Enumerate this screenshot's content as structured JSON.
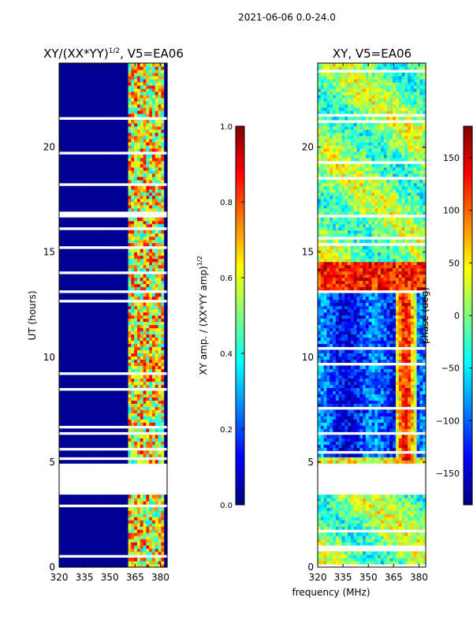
{
  "suptitle": "2021-06-06 0.0-24.0",
  "common_xlabel": "frequency (MHz)",
  "colors": {
    "background": "#ffffff",
    "no_data": "#ffffff",
    "colormap": [
      "#00007f",
      "#0000ff",
      "#007fff",
      "#00ffff",
      "#7fff7f",
      "#ffff00",
      "#ff7f00",
      "#ff0000",
      "#7f0000"
    ]
  },
  "chart_data": [
    {
      "type": "heatmap",
      "title": "XY/(XX*YY)",
      "title_superscript": "1/2",
      "title_suffix": ", V5=EA06",
      "xlabel": "",
      "ylabel": "UT (hours)",
      "xlim": [
        320,
        384
      ],
      "ylim": [
        0,
        24
      ],
      "xticks": [
        320,
        335,
        350,
        365,
        380
      ],
      "yticks": [
        0,
        5,
        10,
        15,
        20
      ],
      "gaps_hours": [
        [
          3.4,
          4.9
        ],
        [
          13.0,
          13.2
        ]
      ],
      "colorbar": {
        "label": "XY amp. / (XX*YY amp)",
        "label_superscript": "1/2",
        "range": [
          0.0,
          1.0
        ],
        "ticks": [
          "0.0",
          "0.2",
          "0.4",
          "0.6",
          "0.8",
          "1.0"
        ]
      }
    },
    {
      "type": "heatmap",
      "title": "XY, V5=EA06",
      "xlabel": "frequency (MHz)",
      "ylabel": "",
      "xlim": [
        320,
        384
      ],
      "ylim": [
        0,
        24
      ],
      "xticks": [
        320,
        335,
        350,
        365,
        380
      ],
      "yticks": [
        0,
        5,
        10,
        15,
        20
      ],
      "gaps_hours": [
        [
          3.4,
          4.9
        ],
        [
          13.0,
          13.2
        ]
      ],
      "colorbar": {
        "label": "phase (deg)",
        "range": [
          -180,
          180
        ],
        "ticks": [
          "−150",
          "−100",
          "−50",
          "0",
          "50",
          "100",
          "150"
        ]
      }
    }
  ]
}
